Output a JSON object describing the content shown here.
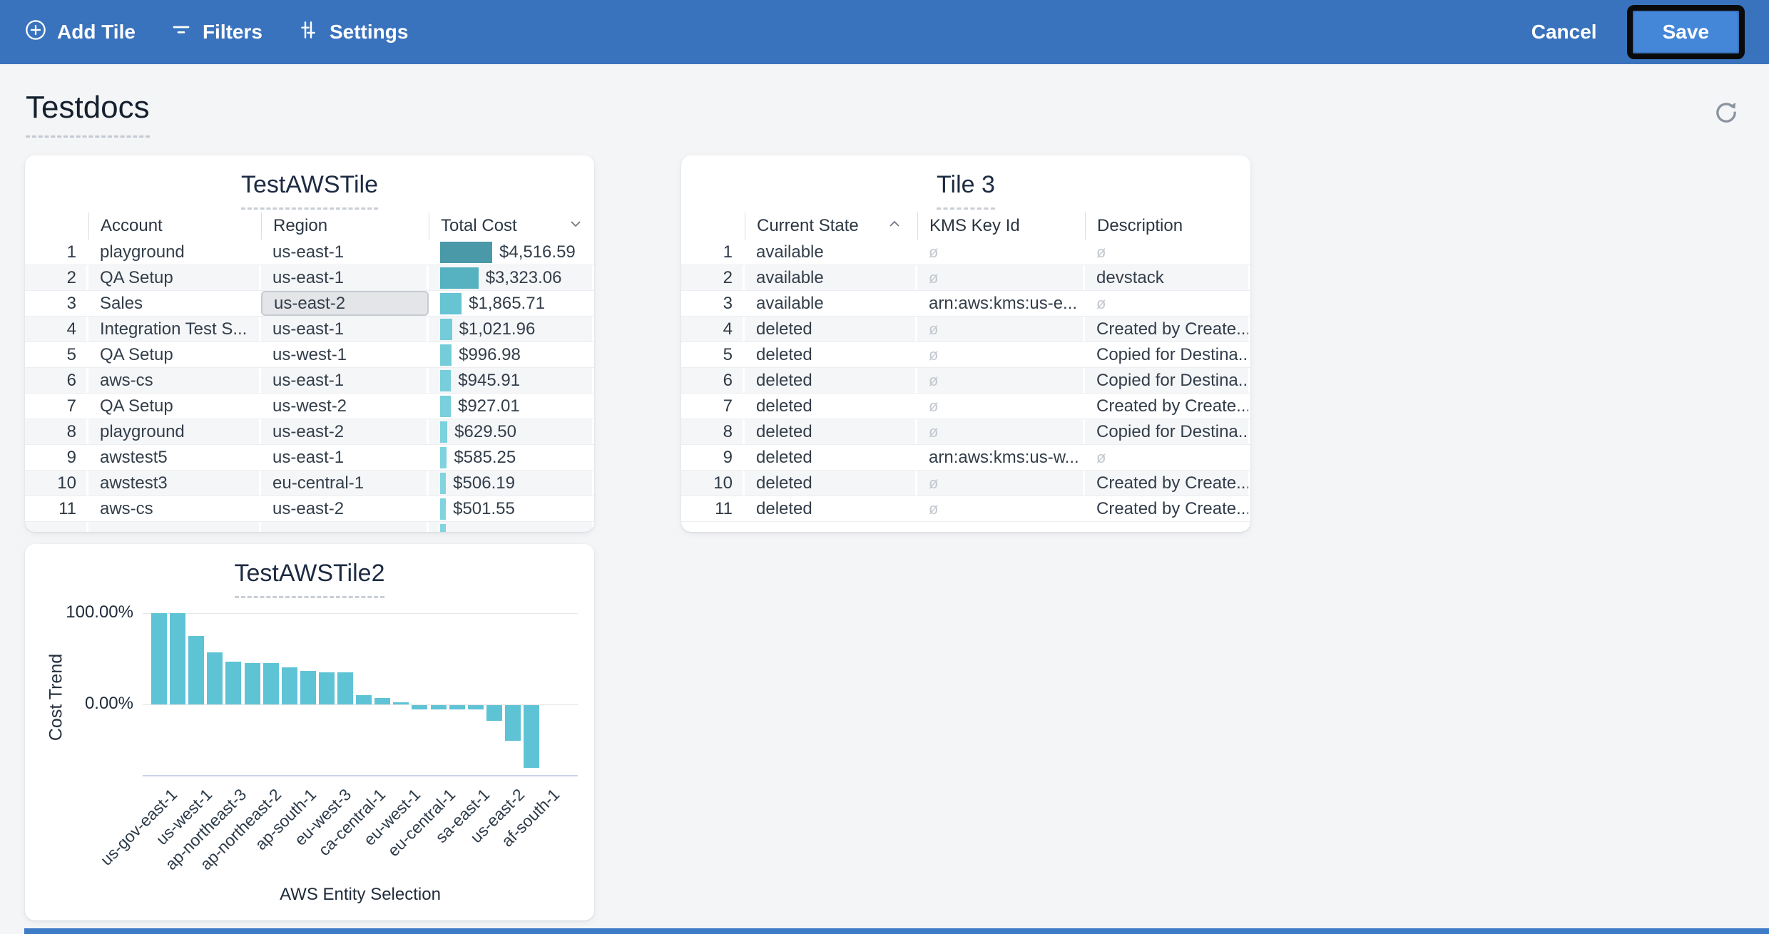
{
  "toolbar": {
    "add_tile_label": "Add Tile",
    "filters_label": "Filters",
    "settings_label": "Settings",
    "cancel_label": "Cancel",
    "save_label": "Save",
    "bg_color": "#3a73bd",
    "save_button_color": "#4486d7"
  },
  "page": {
    "title": "Testdocs"
  },
  "tile1": {
    "title": "TestAWSTile",
    "columns": [
      "Account",
      "Region",
      "Total Cost"
    ],
    "sort_column": "Total Cost",
    "sort_direction": "desc",
    "selected_cell": {
      "row": 3,
      "column": "Region"
    },
    "bar_max_value": 4516.59,
    "bar_colors": [
      "#4a99a9",
      "#56b1c0",
      "#67c4d3",
      "#74ccd9",
      "#76cdda",
      "#78ceda",
      "#79cfdb",
      "#7dd2de",
      "#7ed3de",
      "#80d4df",
      "#81d4df",
      "#82d5e0"
    ],
    "rows": [
      {
        "num": "1",
        "account": "playground",
        "region": "us-east-1",
        "total_cost": "$4,516.59"
      },
      {
        "num": "2",
        "account": "QA Setup",
        "region": "us-east-1",
        "total_cost": "$3,323.06"
      },
      {
        "num": "3",
        "account": "Sales",
        "region": "us-east-2",
        "total_cost": "$1,865.71"
      },
      {
        "num": "4",
        "account": "Integration Test S...",
        "region": "us-east-1",
        "total_cost": "$1,021.96"
      },
      {
        "num": "5",
        "account": "QA Setup",
        "region": "us-west-1",
        "total_cost": "$996.98"
      },
      {
        "num": "6",
        "account": "aws-cs",
        "region": "us-east-1",
        "total_cost": "$945.91"
      },
      {
        "num": "7",
        "account": "QA Setup",
        "region": "us-west-2",
        "total_cost": "$927.01"
      },
      {
        "num": "8",
        "account": "playground",
        "region": "us-east-2",
        "total_cost": "$629.50"
      },
      {
        "num": "9",
        "account": "awstest5",
        "region": "us-east-1",
        "total_cost": "$585.25"
      },
      {
        "num": "10",
        "account": "awstest3",
        "region": "eu-central-1",
        "total_cost": "$506.19"
      },
      {
        "num": "11",
        "account": "aws-cs",
        "region": "us-east-2",
        "total_cost": "$501.55"
      },
      {
        "num": "",
        "account": "",
        "region": "",
        "total_cost": "",
        "partial": true
      }
    ]
  },
  "tile2": {
    "title": "Tile 3",
    "columns": [
      "Current State",
      "KMS Key Id",
      "Description"
    ],
    "sort_column": "Current State",
    "sort_direction": "asc",
    "rows": [
      {
        "num": "1",
        "current_state": "available",
        "kms_key_id": "ø",
        "description": "ø"
      },
      {
        "num": "2",
        "current_state": "available",
        "kms_key_id": "ø",
        "description": "devstack"
      },
      {
        "num": "3",
        "current_state": "available",
        "kms_key_id": "arn:aws:kms:us-e...",
        "description": "ø"
      },
      {
        "num": "4",
        "current_state": "deleted",
        "kms_key_id": "ø",
        "description": "Created by Create..."
      },
      {
        "num": "5",
        "current_state": "deleted",
        "kms_key_id": "ø",
        "description": "Copied for Destina..."
      },
      {
        "num": "6",
        "current_state": "deleted",
        "kms_key_id": "ø",
        "description": "Copied for Destina..."
      },
      {
        "num": "7",
        "current_state": "deleted",
        "kms_key_id": "ø",
        "description": "Created by Create..."
      },
      {
        "num": "8",
        "current_state": "deleted",
        "kms_key_id": "ø",
        "description": "Copied for Destina..."
      },
      {
        "num": "9",
        "current_state": "deleted",
        "kms_key_id": "arn:aws:kms:us-w...",
        "description": "ø"
      },
      {
        "num": "10",
        "current_state": "deleted",
        "kms_key_id": "ø",
        "description": "Created by Create..."
      },
      {
        "num": "11",
        "current_state": "deleted",
        "kms_key_id": "ø",
        "description": "Created by Create..."
      }
    ]
  },
  "chart_data": {
    "type": "bar",
    "title": "TestAWSTile2",
    "xlabel": "AWS Entity Selection",
    "ylabel": "Cost Trend",
    "y_tick_labels": [
      "100.00%",
      "0.00%"
    ],
    "ylim": [
      -78,
      108
    ],
    "grid": true,
    "legend": false,
    "x_tick_labels": [
      "us-gov-east-1",
      "us-west-1",
      "ap-northeast-3",
      "ap-northeast-2",
      "ap-south-1",
      "eu-west-3",
      "ca-central-1",
      "eu-west-1",
      "eu-central-1",
      "sa-east-1",
      "us-east-2",
      "af-south-1"
    ],
    "values_pct": [
      100,
      100,
      75,
      57,
      47,
      45,
      45,
      41,
      37,
      35,
      35,
      10,
      7,
      2,
      -5,
      -5,
      -5,
      -5,
      -17,
      -39,
      -69
    ],
    "bar_color": "#5ec3d5"
  }
}
